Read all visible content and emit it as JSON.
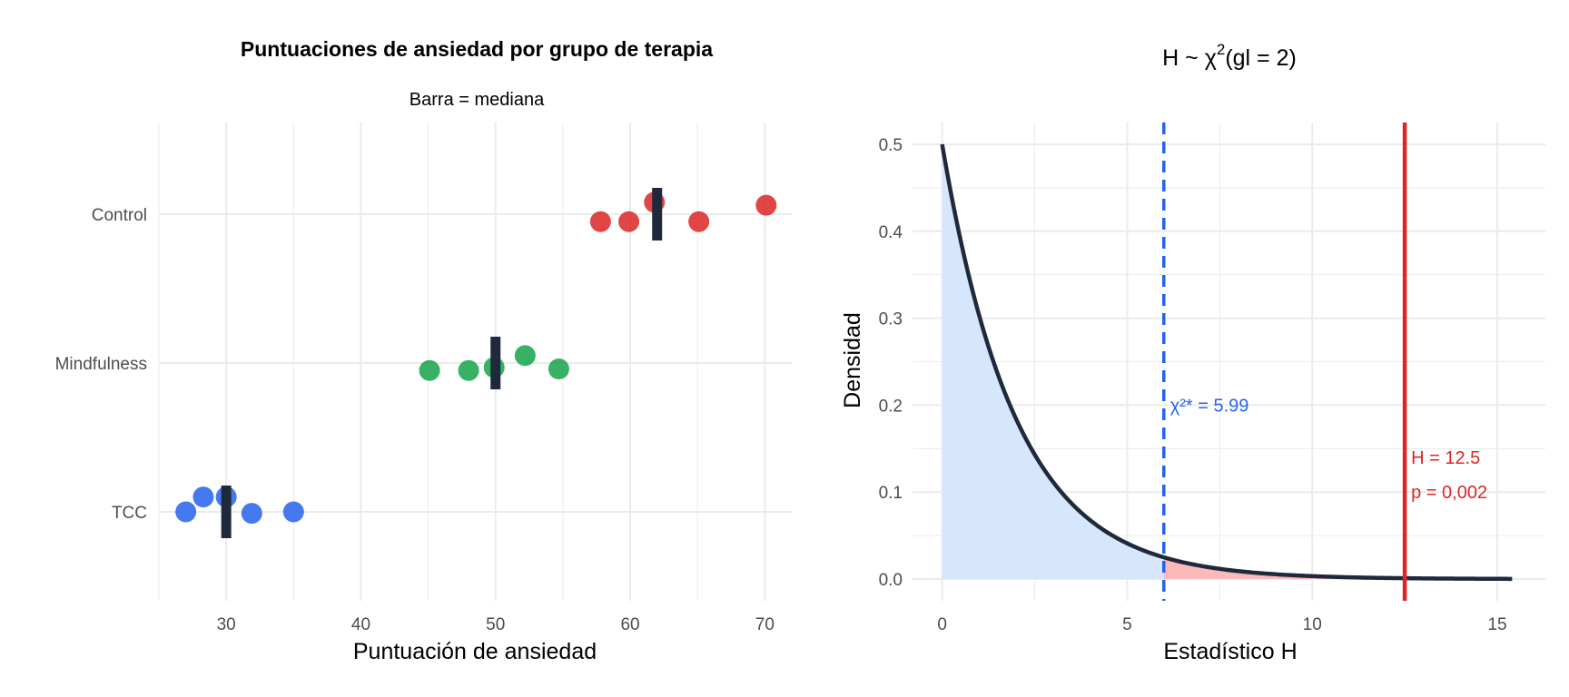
{
  "chart_data": [
    {
      "type": "scatter",
      "title": "Puntuaciones de ansiedad por grupo de terapia",
      "subtitle": "Barra = mediana",
      "xlabel": "Puntuación de ansiedad",
      "ylabel": "",
      "xlim": [
        25,
        72
      ],
      "xticks": [
        30,
        40,
        50,
        60,
        70
      ],
      "categories": [
        "TCC",
        "Mindfulness",
        "Control"
      ],
      "grid": true,
      "series": [
        {
          "group": "Control",
          "color": "#dc2626",
          "median": 62,
          "points": [
            {
              "x": 57.8,
              "jitter": 0.05
            },
            {
              "x": 59.9,
              "jitter": 0.05
            },
            {
              "x": 61.8,
              "jitter": -0.08
            },
            {
              "x": 65.1,
              "jitter": 0.05
            },
            {
              "x": 70.1,
              "jitter": -0.06
            }
          ]
        },
        {
          "group": "Mindfulness",
          "color": "#16a34a",
          "median": 50,
          "points": [
            {
              "x": 45.1,
              "jitter": 0.05
            },
            {
              "x": 48.0,
              "jitter": 0.05
            },
            {
              "x": 49.9,
              "jitter": 0.03
            },
            {
              "x": 52.2,
              "jitter": -0.05
            },
            {
              "x": 54.7,
              "jitter": 0.04
            }
          ]
        },
        {
          "group": "TCC",
          "color": "#2563eb",
          "median": 30,
          "points": [
            {
              "x": 27.0,
              "jitter": 0.0
            },
            {
              "x": 28.3,
              "jitter": -0.1
            },
            {
              "x": 30.0,
              "jitter": -0.1
            },
            {
              "x": 31.9,
              "jitter": 0.01
            },
            {
              "x": 35.0,
              "jitter": 0.0
            }
          ]
        }
      ],
      "median_color": "#1e293b"
    },
    {
      "type": "area",
      "title_main": "H ~ χ",
      "title_sup": "2",
      "title_rest": "(gl = 2)",
      "xlabel": "Estadístico H",
      "ylabel": "Densidad",
      "xlim": [
        -0.8,
        16.3
      ],
      "ylim": [
        -0.025,
        0.525
      ],
      "xticks": [
        0,
        5,
        10,
        15
      ],
      "yticks": [
        "0.0",
        "0.1",
        "0.2",
        "0.3",
        "0.4",
        "0.5"
      ],
      "ytick_values": [
        0,
        0.1,
        0.2,
        0.3,
        0.4,
        0.5
      ],
      "df": 2,
      "x_max": 15.4,
      "critical_value": 5.99,
      "h_value": 12.5,
      "critical_label": "χ²* = 5.99",
      "h_label": "H = 12.5",
      "p_label": "p = 0,002",
      "curve_color": "#1e293b",
      "accept_fill": "#d6e6fb",
      "reject_fill": "#fbb9b9",
      "critical_color": "#2563eb",
      "h_color": "#dc2626"
    }
  ]
}
